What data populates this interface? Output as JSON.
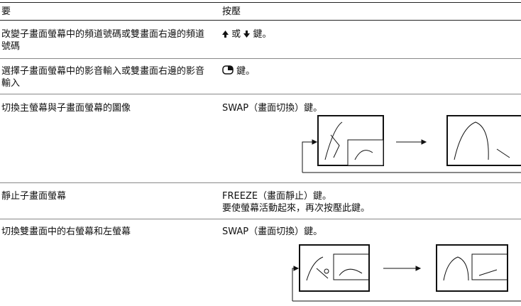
{
  "table": {
    "header": [
      "要",
      "按壓"
    ],
    "rows": [
      {
        "target": "改變子畫面螢幕中的頻道號碼或雙畫面右邊的頻道號碼",
        "action": [
          "或",
          "鍵。"
        ]
      },
      {
        "target": "選擇子畫面螢幕中的影音輸入或雙畫面右邊的影音輸入",
        "action": [
          "鍵。"
        ]
      },
      {
        "target": "切換主螢幕與子畫面螢幕的圖像",
        "action": [
          "SWAP（畫面切換）鍵。"
        ]
      },
      {
        "target": "靜止子畫面螢幕",
        "action": [
          "FREEZE（畫面靜止）鍵。",
          "要使螢幕活動起來，再次按壓此鍵。"
        ]
      },
      {
        "target": "切換雙畫面中的右螢幕和左螢幕",
        "action": [
          "SWAP（畫面切換）鍵。"
        ]
      }
    ]
  }
}
